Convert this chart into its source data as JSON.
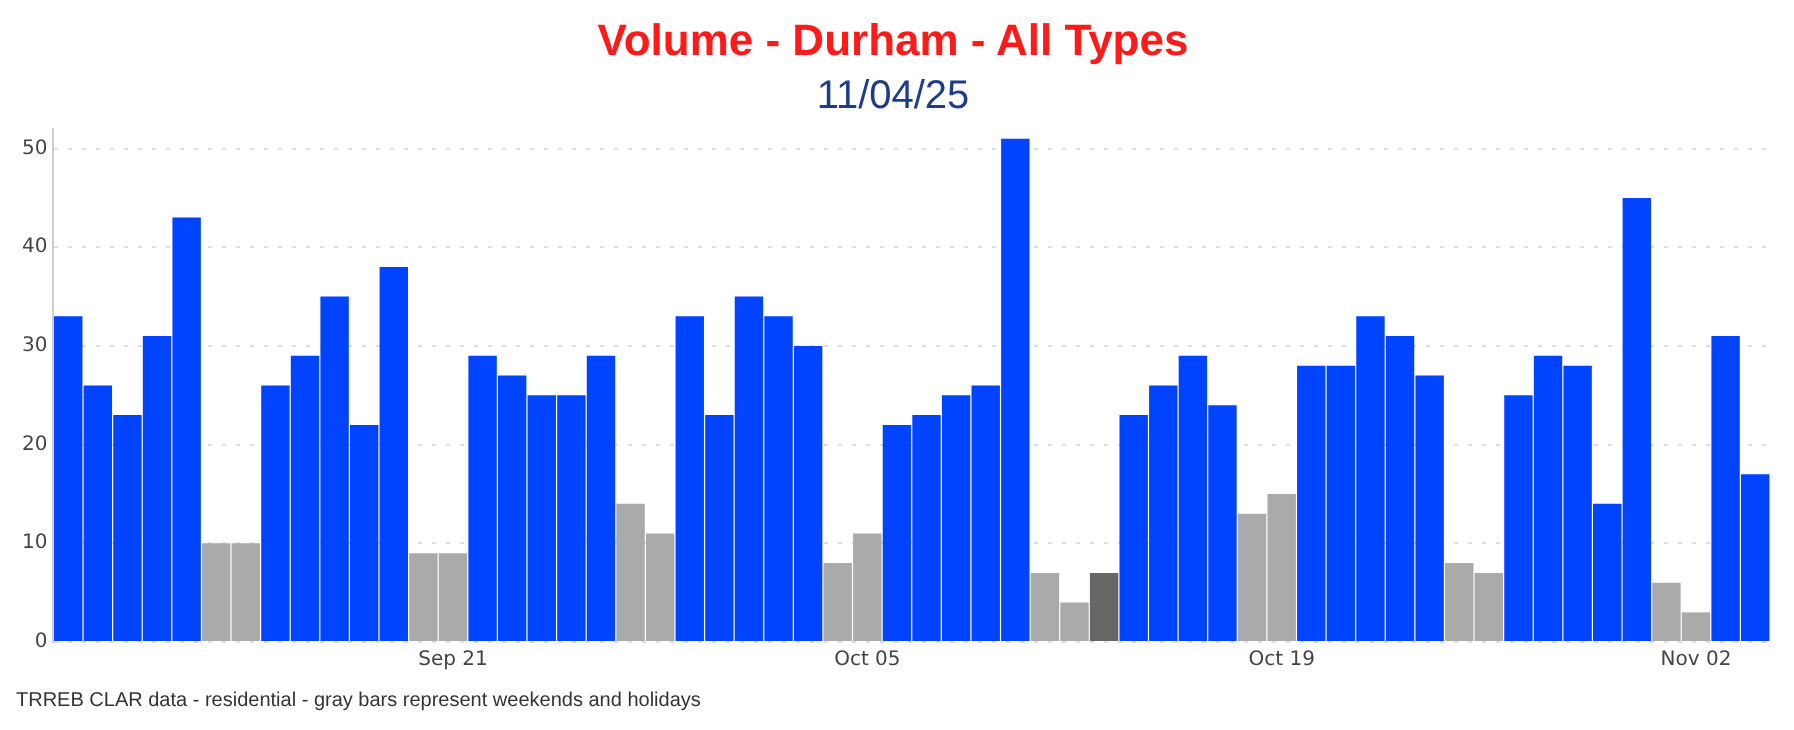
{
  "chart_data": {
    "type": "bar",
    "title": "Volume - Durham - All Types",
    "subtitle": "11/04/25",
    "x": [
      "--09-08",
      "--09-09",
      "--09-10",
      "--09-11",
      "--09-12",
      "--09-13",
      "--09-14",
      "--09-15",
      "--09-16",
      "--09-17",
      "--09-18",
      "--09-19",
      "--09-20",
      "--09-21",
      "--09-22",
      "--09-23",
      "--09-24",
      "--09-25",
      "--09-26",
      "--09-27",
      "--09-28",
      "--09-29",
      "--09-30",
      "--10-01",
      "--10-02",
      "--10-03",
      "--10-04",
      "--10-05",
      "--10-06",
      "--10-07",
      "--10-08",
      "--10-09",
      "--10-10",
      "--10-11",
      "--10-12",
      "--10-13",
      "--10-14",
      "--10-15",
      "--10-16",
      "--10-17",
      "--10-18",
      "--10-19",
      "--10-20",
      "--10-21",
      "--10-22",
      "--10-23",
      "--10-24",
      "--10-25",
      "--10-26",
      "--10-27",
      "--10-28",
      "--10-29",
      "--10-30",
      "--10-31",
      "--11-01",
      "--11-02",
      "--11-03",
      "--11-04"
    ],
    "values": [
      33,
      26,
      23,
      31,
      43,
      10,
      10,
      26,
      29,
      35,
      22,
      38,
      9,
      9,
      29,
      27,
      25,
      25,
      29,
      14,
      11,
      33,
      23,
      35,
      33,
      30,
      8,
      11,
      22,
      23,
      25,
      26,
      51,
      7,
      4,
      7,
      23,
      26,
      29,
      24,
      13,
      15,
      28,
      28,
      33,
      31,
      27,
      8,
      7,
      25,
      29,
      28,
      14,
      45,
      6,
      3,
      31,
      17
    ],
    "colors": [
      "#0044ff",
      "#0044ff",
      "#0044ff",
      "#0044ff",
      "#0044ff",
      "#aaaaaa",
      "#aaaaaa",
      "#0044ff",
      "#0044ff",
      "#0044ff",
      "#0044ff",
      "#0044ff",
      "#aaaaaa",
      "#aaaaaa",
      "#0044ff",
      "#0044ff",
      "#0044ff",
      "#0044ff",
      "#0044ff",
      "#aaaaaa",
      "#aaaaaa",
      "#0044ff",
      "#0044ff",
      "#0044ff",
      "#0044ff",
      "#0044ff",
      "#aaaaaa",
      "#aaaaaa",
      "#0044ff",
      "#0044ff",
      "#0044ff",
      "#0044ff",
      "#0044ff",
      "#aaaaaa",
      "#aaaaaa",
      "#666666",
      "#0044ff",
      "#0044ff",
      "#0044ff",
      "#0044ff",
      "#aaaaaa",
      "#aaaaaa",
      "#0044ff",
      "#0044ff",
      "#0044ff",
      "#0044ff",
      "#0044ff",
      "#aaaaaa",
      "#aaaaaa",
      "#0044ff",
      "#0044ff",
      "#0044ff",
      "#0044ff",
      "#0044ff",
      "#aaaaaa",
      "#aaaaaa",
      "#0044ff",
      "#0044ff"
    ],
    "xlim": [
      "--09-07T12:00",
      "--11-04T12:00"
    ],
    "xticks": [
      {
        "value": "--09-21",
        "label": "Sep 21"
      },
      {
        "value": "--10-05",
        "label": "Oct 05"
      },
      {
        "value": "--10-19",
        "label": "Oct 19"
      },
      {
        "value": "--11-02",
        "label": "Nov 02"
      }
    ],
    "ylim": [
      0,
      52
    ],
    "yticks": [
      0,
      10,
      20,
      30,
      40,
      50
    ],
    "grid": "y",
    "legend": false,
    "annotations": [
      "TRREB CLAR data - residential - gray bars represent weekends and holidays"
    ]
  }
}
